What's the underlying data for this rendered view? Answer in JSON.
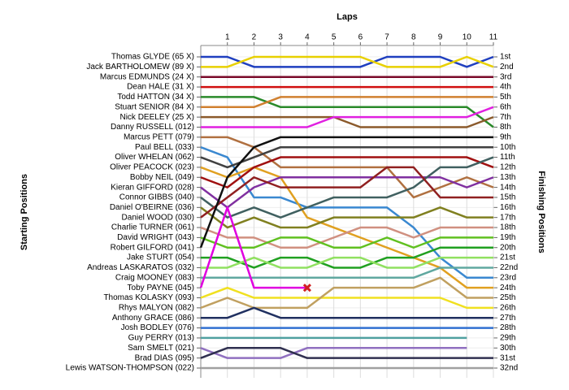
{
  "chart_data": {
    "type": "lap",
    "title": "Laps",
    "ylabel": "Starting Positions",
    "y2label": "Finishing Positions",
    "x": [
      0,
      1,
      2,
      3,
      4,
      5,
      6,
      7,
      8,
      9,
      10,
      11
    ],
    "xlim": [
      0,
      11
    ],
    "xticks": [
      1,
      2,
      3,
      4,
      5,
      6,
      7,
      8,
      9,
      10,
      11
    ],
    "ylim": [
      1,
      32
    ],
    "grid": true,
    "retired_marker_color": "#d02020",
    "y2ticks": [
      {
        "value": 1,
        "label": "1st"
      },
      {
        "value": 2,
        "label": "2nd"
      },
      {
        "value": 3,
        "label": "3rd"
      },
      {
        "value": 4,
        "label": "4th"
      },
      {
        "value": 5,
        "label": "5th"
      },
      {
        "value": 6,
        "label": "6th"
      },
      {
        "value": 7,
        "label": "7th"
      },
      {
        "value": 8,
        "label": "8th"
      },
      {
        "value": 9,
        "label": "9th"
      },
      {
        "value": 10,
        "label": "10th"
      },
      {
        "value": 11,
        "label": "11th"
      },
      {
        "value": 12,
        "label": "12th"
      },
      {
        "value": 13,
        "label": "13th"
      },
      {
        "value": 14,
        "label": "14th"
      },
      {
        "value": 15,
        "label": "15th"
      },
      {
        "value": 16,
        "label": "16th"
      },
      {
        "value": 17,
        "label": "17th"
      },
      {
        "value": 18,
        "label": "18th"
      },
      {
        "value": 19,
        "label": "19th"
      },
      {
        "value": 20,
        "label": "20th"
      },
      {
        "value": 21,
        "label": "21st"
      },
      {
        "value": 22,
        "label": "22nd"
      },
      {
        "value": 23,
        "label": "23rd"
      },
      {
        "value": 24,
        "label": "24th"
      },
      {
        "value": 25,
        "label": "25th"
      },
      {
        "value": 26,
        "label": "26th"
      },
      {
        "value": 27,
        "label": "27th"
      },
      {
        "value": 28,
        "label": "28th"
      },
      {
        "value": 29,
        "label": "29th"
      },
      {
        "value": 30,
        "label": "30th"
      },
      {
        "value": 31,
        "label": "31st"
      },
      {
        "value": 32,
        "label": "32nd"
      }
    ],
    "series": [
      {
        "name": "Thomas GLYDE (65 X)",
        "color": "#1f3fbf",
        "values": [
          1,
          1,
          2,
          2,
          2,
          2,
          2,
          1,
          1,
          1,
          2,
          1
        ]
      },
      {
        "name": "Jack BARTHOLOMEW (89 X)",
        "color": "#e8d000",
        "values": [
          2,
          2,
          1,
          1,
          1,
          1,
          1,
          2,
          2,
          2,
          1,
          2
        ]
      },
      {
        "name": "Marcus EDMUNDS (24 X)",
        "color": "#7a0a2a",
        "values": [
          3,
          3,
          3,
          3,
          3,
          3,
          3,
          3,
          3,
          3,
          3,
          3
        ]
      },
      {
        "name": "Dean HALE (31 X)",
        "color": "#d01010",
        "values": [
          4,
          4,
          4,
          4,
          4,
          4,
          4,
          4,
          4,
          4,
          4,
          4
        ]
      },
      {
        "name": "Todd HATTON (34 X)",
        "color": "#2a8a2a",
        "values": [
          5,
          5,
          5,
          6,
          6,
          6,
          6,
          6,
          6,
          6,
          6,
          8
        ]
      },
      {
        "name": "Stuart SENIOR (84 X)",
        "color": "#d08030",
        "values": [
          6,
          6,
          6,
          5,
          5,
          5,
          5,
          5,
          5,
          5,
          5,
          5
        ]
      },
      {
        "name": "Nick DEELEY (25 X)",
        "color": "#8b5a2b",
        "values": [
          7,
          7,
          7,
          7,
          7,
          7,
          8,
          8,
          8,
          8,
          8,
          7
        ]
      },
      {
        "name": "Danny RUSSELL (012)",
        "color": "#e020e0",
        "values": [
          8,
          8,
          8,
          8,
          8,
          7,
          7,
          7,
          7,
          7,
          7,
          6
        ]
      },
      {
        "name": "Marcus PETT (079)",
        "color": "#b07040",
        "values": [
          9,
          9,
          10,
          12,
          12,
          12,
          12,
          12,
          15,
          14,
          13,
          14
        ]
      },
      {
        "name": "Paul BELL (033)",
        "color": "#3a88d0",
        "values": [
          10,
          11,
          15,
          15,
          16,
          16,
          16,
          16,
          18,
          21,
          23,
          23
        ]
      },
      {
        "name": "Oliver WHELAN (062)",
        "color": "#404040",
        "values": [
          11,
          12,
          11,
          10,
          10,
          10,
          10,
          10,
          10,
          10,
          10,
          10
        ]
      },
      {
        "name": "Oliver PEACOCK (023)",
        "color": "#e0a020",
        "values": [
          12,
          13,
          12,
          13,
          17,
          18,
          19,
          20,
          21,
          22,
          24,
          24
        ]
      },
      {
        "name": "Bobby NEIL (049)",
        "color": "#a01010",
        "values": [
          13,
          14,
          12,
          11,
          11,
          11,
          11,
          11,
          11,
          11,
          11,
          12
        ]
      },
      {
        "name": "Kieran GIFFORD (028)",
        "color": "#8030a0",
        "values": [
          14,
          16,
          14,
          13,
          13,
          13,
          13,
          13,
          13,
          13,
          14,
          13
        ]
      },
      {
        "name": "Connor GIBBS (040)",
        "color": "#406060",
        "values": [
          15,
          17,
          16,
          17,
          16,
          15,
          15,
          15,
          14,
          12,
          12,
          11
        ]
      },
      {
        "name": "Daniel O'BEIRNE (036)",
        "color": "#808020",
        "values": [
          16,
          18,
          17,
          18,
          18,
          17,
          17,
          17,
          17,
          16,
          17,
          17
        ]
      },
      {
        "name": "Daniel WOOD (030)",
        "color": "#902020",
        "values": [
          17,
          15,
          13,
          14,
          14,
          14,
          14,
          12,
          12,
          15,
          15,
          15
        ]
      },
      {
        "name": "Charlie TURNER (061)",
        "color": "#d09080",
        "values": [
          18,
          19,
          19,
          20,
          20,
          19,
          18,
          18,
          19,
          18,
          18,
          18
        ]
      },
      {
        "name": "David WRIGHT (043)",
        "color": "#60c020",
        "values": [
          19,
          20,
          20,
          19,
          19,
          20,
          20,
          19,
          20,
          19,
          19,
          19
        ]
      },
      {
        "name": "Robert GILFORD (041)",
        "color": "#101010",
        "values": [
          20,
          13,
          10,
          9,
          9,
          9,
          9,
          9,
          9,
          9,
          9,
          9
        ]
      },
      {
        "name": "Jake STURT (054)",
        "color": "#20a020",
        "values": [
          21,
          21,
          22,
          21,
          21,
          22,
          22,
          21,
          21,
          20,
          20,
          20
        ]
      },
      {
        "name": "Andreas LASKARATOS (032)",
        "color": "#90e060",
        "values": [
          22,
          22,
          21,
          22,
          22,
          21,
          21,
          22,
          22,
          21,
          21,
          21
        ]
      },
      {
        "name": "Craig MOONEY (083)",
        "color": "#60a8a0",
        "values": [
          23,
          23,
          23,
          23,
          23,
          23,
          23,
          23,
          23,
          22,
          22,
          22
        ]
      },
      {
        "name": "Toby PAYNE (045)",
        "color": "#e000e0",
        "values": [
          24,
          16,
          24,
          24,
          24,
          null,
          null,
          null,
          null,
          null,
          null,
          null
        ]
      },
      {
        "name": "Thomas KOLASKY (093)",
        "color": "#f0e020",
        "values": [
          25,
          24,
          25,
          25,
          25,
          25,
          25,
          25,
          25,
          25,
          26,
          26
        ]
      },
      {
        "name": "Rhys MALYON (082)",
        "color": "#c0a060",
        "values": [
          26,
          25,
          26,
          26,
          26,
          24,
          24,
          24,
          24,
          23,
          25,
          25
        ]
      },
      {
        "name": "Anthony GRACE (086)",
        "color": "#203060",
        "values": [
          27,
          27,
          26,
          27,
          27,
          27,
          27,
          27,
          27,
          27,
          27,
          27
        ]
      },
      {
        "name": "Josh BODLEY (076)",
        "color": "#3070d0",
        "values": [
          28,
          28,
          28,
          28,
          28,
          28,
          28,
          28,
          28,
          28,
          28,
          28
        ]
      },
      {
        "name": "Guy PERRY (013)",
        "color": "#50a0a0",
        "values": [
          29,
          29,
          29,
          29,
          29,
          29,
          29,
          29,
          29,
          29,
          29,
          null
        ]
      },
      {
        "name": "Sam SMELT (021)",
        "color": "#9070c0",
        "values": [
          30,
          31,
          31,
          31,
          30,
          30,
          30,
          30,
          30,
          30,
          30,
          null
        ]
      },
      {
        "name": "Brad DIAS (095)",
        "color": "#303050",
        "values": [
          31,
          30,
          30,
          30,
          31,
          31,
          31,
          31,
          31,
          31,
          31,
          31
        ]
      },
      {
        "name": "Lewis WATSON-THOMPSON (022)",
        "color": "#a0a0a0",
        "values": [
          32,
          32,
          32,
          32,
          32,
          32,
          32,
          32,
          32,
          32,
          32,
          32
        ]
      }
    ]
  }
}
